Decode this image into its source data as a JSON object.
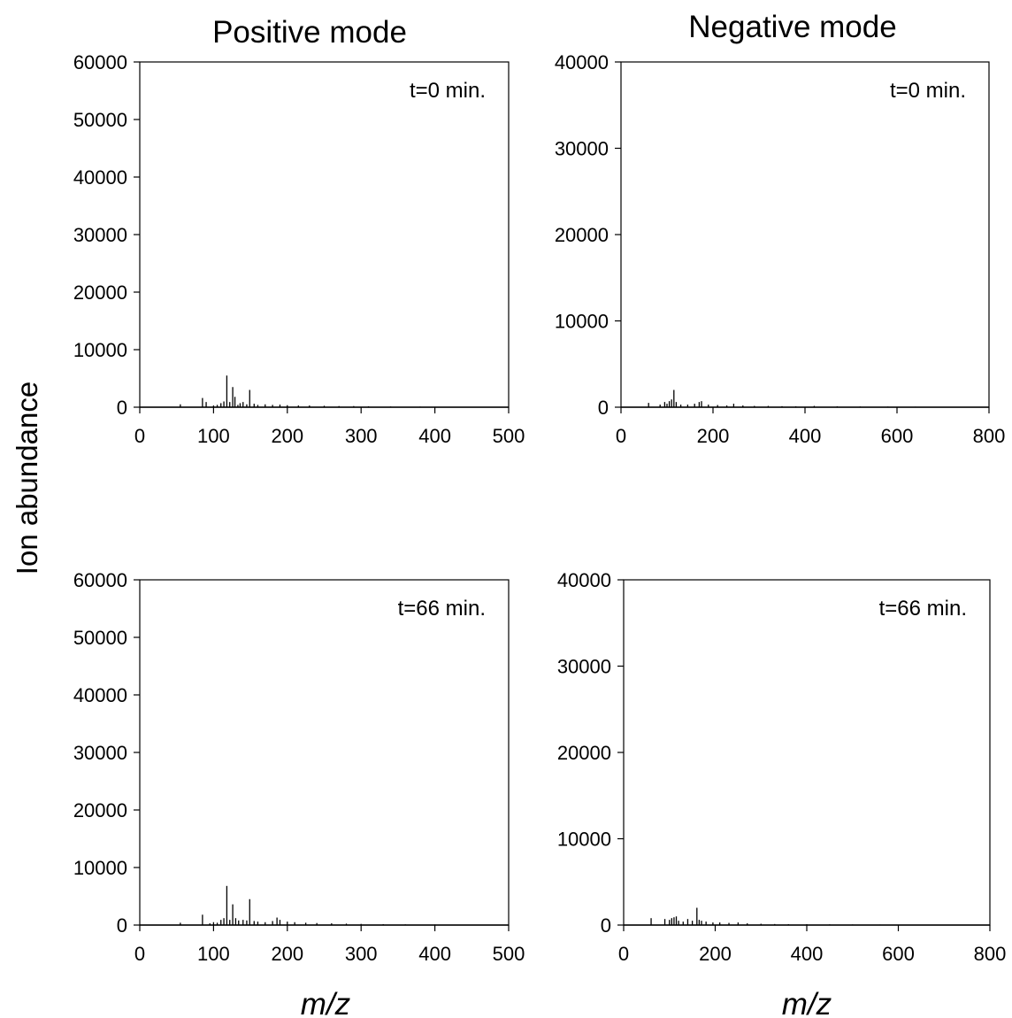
{
  "figure": {
    "col_titles": [
      "Positive mode",
      "Negative mode"
    ],
    "ylabel": "Ion abundance",
    "xlabel": "m/z"
  },
  "chart_data": [
    {
      "type": "bar",
      "panel": "positive-t0",
      "title": "Positive mode",
      "annotation": "t=0 min.",
      "xlabel": "",
      "ylabel": "Ion abundance",
      "xlim": [
        0,
        500
      ],
      "ylim": [
        0,
        60000
      ],
      "xticks": [
        0,
        100,
        200,
        300,
        400,
        500
      ],
      "yticks": [
        0,
        10000,
        20000,
        30000,
        40000,
        50000,
        60000
      ],
      "x": [
        55,
        85,
        90,
        100,
        105,
        110,
        114,
        118,
        122,
        126,
        129,
        133,
        136,
        140,
        145,
        149,
        155,
        160,
        170,
        180,
        190,
        200,
        215,
        230,
        250,
        270,
        290,
        310,
        340,
        380,
        420,
        460
      ],
      "values": [
        500,
        1600,
        900,
        300,
        400,
        700,
        1000,
        5500,
        900,
        3500,
        1800,
        400,
        700,
        900,
        500,
        3000,
        600,
        400,
        500,
        400,
        450,
        350,
        300,
        300,
        250,
        200,
        200,
        150,
        120,
        100,
        80,
        60
      ]
    },
    {
      "type": "bar",
      "panel": "negative-t0",
      "title": "Negative mode",
      "annotation": "t=0 min.",
      "xlabel": "",
      "ylabel": "",
      "xlim": [
        0,
        800
      ],
      "ylim": [
        0,
        40000
      ],
      "xticks": [
        0,
        200,
        400,
        600,
        800
      ],
      "yticks": [
        0,
        10000,
        20000,
        30000,
        40000
      ],
      "x": [
        60,
        85,
        95,
        100,
        105,
        110,
        115,
        120,
        130,
        145,
        160,
        170,
        175,
        190,
        210,
        230,
        245,
        265,
        290,
        320,
        350,
        380,
        420,
        470,
        520,
        580,
        640,
        700,
        760
      ],
      "values": [
        500,
        300,
        600,
        400,
        700,
        900,
        2000,
        600,
        300,
        300,
        400,
        600,
        700,
        300,
        250,
        200,
        400,
        200,
        150,
        150,
        120,
        100,
        150,
        100,
        80,
        70,
        60,
        50,
        40
      ]
    },
    {
      "type": "bar",
      "panel": "positive-t66",
      "title": "",
      "annotation": "t=66 min.",
      "xlabel": "m/z",
      "ylabel": "Ion abundance",
      "xlim": [
        0,
        500
      ],
      "ylim": [
        0,
        60000
      ],
      "xticks": [
        0,
        100,
        200,
        300,
        400,
        500
      ],
      "yticks": [
        0,
        10000,
        20000,
        30000,
        40000,
        50000,
        60000
      ],
      "x": [
        55,
        85,
        95,
        100,
        105,
        110,
        114,
        118,
        122,
        126,
        130,
        134,
        140,
        145,
        149,
        155,
        160,
        170,
        180,
        186,
        190,
        200,
        210,
        225,
        240,
        260,
        280,
        300,
        330,
        360,
        400,
        440,
        480
      ],
      "values": [
        400,
        1800,
        300,
        500,
        400,
        900,
        1200,
        6800,
        900,
        3600,
        1200,
        800,
        900,
        800,
        4500,
        700,
        600,
        500,
        700,
        1300,
        900,
        600,
        500,
        400,
        350,
        300,
        250,
        200,
        150,
        120,
        100,
        80,
        60
      ]
    },
    {
      "type": "bar",
      "panel": "negative-t66",
      "title": "",
      "annotation": "t=66 min.",
      "xlabel": "m/z",
      "ylabel": "",
      "xlim": [
        0,
        800
      ],
      "ylim": [
        0,
        40000
      ],
      "xticks": [
        0,
        200,
        400,
        600,
        800
      ],
      "yticks": [
        0,
        10000,
        20000,
        30000,
        40000
      ],
      "x": [
        60,
        90,
        100,
        105,
        110,
        115,
        120,
        130,
        140,
        150,
        160,
        165,
        170,
        180,
        195,
        210,
        230,
        250,
        270,
        300,
        330,
        360,
        400,
        450,
        500,
        560,
        620,
        690,
        760
      ],
      "values": [
        800,
        700,
        600,
        800,
        900,
        1000,
        500,
        400,
        700,
        500,
        2000,
        600,
        500,
        400,
        300,
        300,
        250,
        300,
        200,
        150,
        120,
        100,
        100,
        80,
        70,
        60,
        50,
        40,
        40
      ]
    }
  ]
}
